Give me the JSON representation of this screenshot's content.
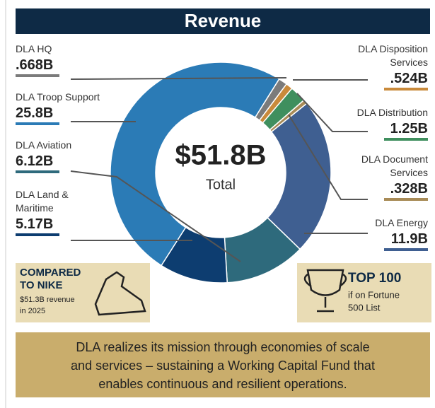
{
  "chart_data": {
    "type": "pie",
    "title": "Revenue",
    "categories": [
      "DLA HQ",
      "DLA Disposition Services",
      "DLA Distribution",
      "DLA Document Services",
      "DLA Energy",
      "DLA Aviation",
      "DLA Land & Maritime",
      "DLA Troop Support"
    ],
    "values": [
      0.668,
      0.524,
      1.25,
      0.328,
      11.9,
      6.12,
      5.17,
      25.8
    ],
    "value_labels": [
      ".668B",
      ".524B",
      "1.25B",
      ".328B",
      "11.9B",
      "6.12B",
      "5.17B",
      "25.8B"
    ],
    "colors": [
      "#7b7b7b",
      "#c98a3b",
      "#3f8f5e",
      "#a88b57",
      "#3f5f91",
      "#2e6a7c",
      "#0d3d70",
      "#2b7bb6"
    ],
    "center_label": "$51.8B",
    "center_sublabel": "Total"
  },
  "nike": {
    "title_lines": [
      "COMPARED",
      "TO NIKE"
    ],
    "note_lines": [
      "$51.3B revenue",
      "in 2025"
    ]
  },
  "top100": {
    "title": "TOP 100",
    "note_lines": [
      "if on Fortune",
      "500 List"
    ]
  },
  "footer": {
    "lines": [
      "DLA realizes its mission through economies of scale",
      "and services – sustaining a Working Capital Fund that",
      "enables continuous and resilient operations."
    ]
  }
}
